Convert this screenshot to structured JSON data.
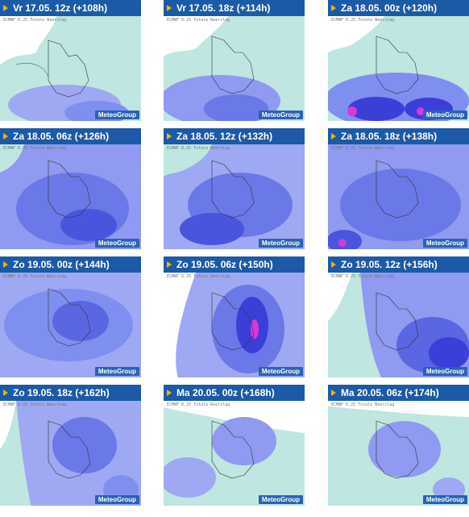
{
  "tiles": [
    {
      "label": "Vr 17.05. 12z (+108h)",
      "brand": "MeteoGroup"
    },
    {
      "label": "Vr 17.05. 18z (+114h)",
      "brand": "MeteoGroup"
    },
    {
      "label": "Za 18.05. 00z (+120h)",
      "brand": "MeteoGroup"
    },
    {
      "label": "Za 18.05. 06z (+126h)",
      "brand": "MeteoGroup"
    },
    {
      "label": "Za 18.05. 12z (+132h)",
      "brand": "MeteoGroup"
    },
    {
      "label": "Za 18.05. 18z (+138h)",
      "brand": "MeteoGroup"
    },
    {
      "label": "Zo 19.05. 00z (+144h)",
      "brand": "MeteoGroup"
    },
    {
      "label": "Zo 19.05. 06z (+150h)",
      "brand": "MeteoGroup"
    },
    {
      "label": "Zo 19.05. 12z (+156h)",
      "brand": "MeteoGroup"
    },
    {
      "label": "Zo 19.05. 18z (+162h)",
      "brand": "MeteoGroup"
    },
    {
      "label": "Ma 20.05. 00z (+168h)",
      "brand": "MeteoGroup"
    },
    {
      "label": "Ma 20.05. 06z (+174h)",
      "brand": "MeteoGroup"
    }
  ],
  "colors": {
    "header_bg": "#1b5aa6",
    "header_text": "#ffffff",
    "marker": "#f2b400",
    "land_light": "#bfe6e0",
    "precip_mid": "#7f8ff0",
    "precip_high": "#3b3fd8",
    "precip_peak": "#d838d8"
  }
}
